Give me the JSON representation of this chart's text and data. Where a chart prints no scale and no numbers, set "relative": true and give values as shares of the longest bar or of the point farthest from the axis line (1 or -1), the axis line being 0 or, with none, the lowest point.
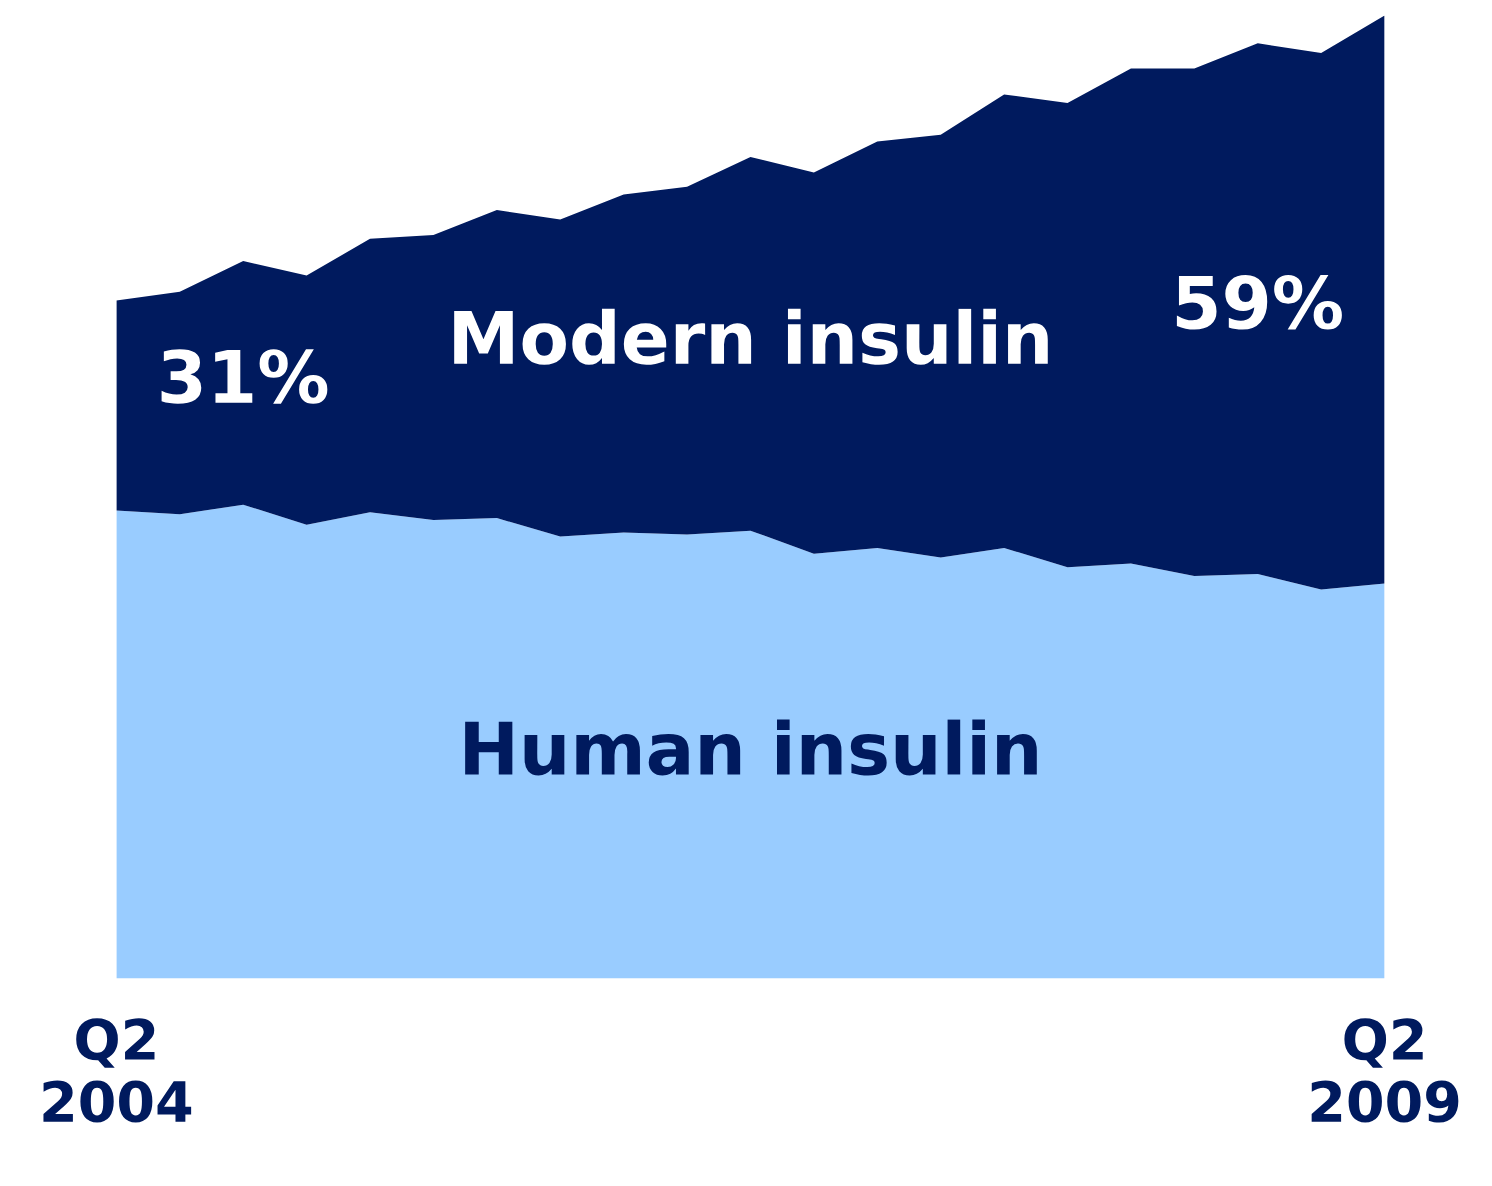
{
  "chart_data": {
    "type": "area",
    "stacked": true,
    "relative": true,
    "categories": [
      "Q2\n2004",
      null,
      null,
      null,
      null,
      null,
      null,
      null,
      null,
      null,
      null,
      null,
      null,
      null,
      null,
      null,
      null,
      null,
      null,
      null,
      "Q2\n2009"
    ],
    "series": [
      {
        "name": "Human insulin",
        "color": "#99ccff",
        "values": [
          0.486,
          0.482,
          0.492,
          0.471,
          0.484,
          0.476,
          0.478,
          0.459,
          0.463,
          0.461,
          0.465,
          0.441,
          0.447,
          0.437,
          0.447,
          0.427,
          0.431,
          0.418,
          0.42,
          0.404,
          0.41
        ]
      },
      {
        "name": "Modern insulin",
        "color": "#001a5e",
        "values": [
          0.218,
          0.231,
          0.253,
          0.259,
          0.284,
          0.296,
          0.32,
          0.329,
          0.351,
          0.361,
          0.388,
          0.396,
          0.422,
          0.439,
          0.471,
          0.482,
          0.514,
          0.527,
          0.551,
          0.557,
          0.59
        ]
      }
    ],
    "annotations": [
      "31%",
      "59%"
    ],
    "grid": false,
    "legend": false
  }
}
